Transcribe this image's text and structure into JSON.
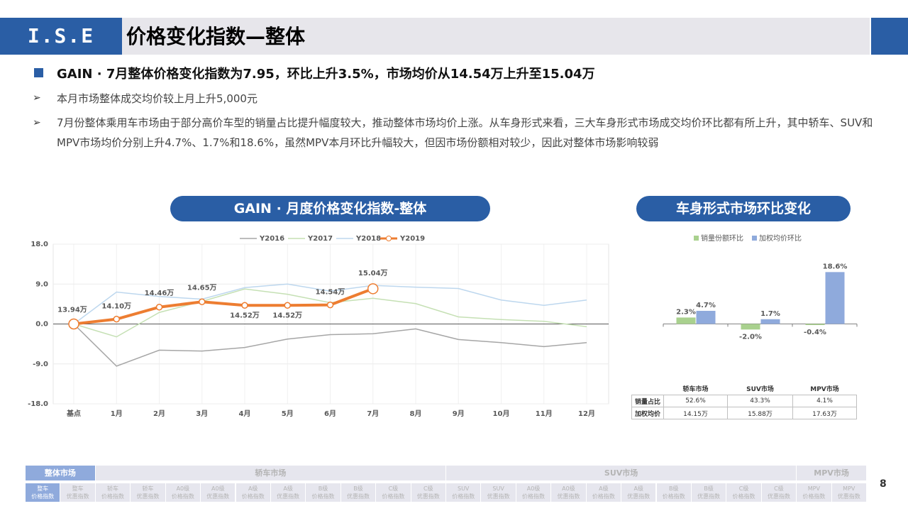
{
  "header": {
    "logo": "I.S.E",
    "title": "价格变化指数—整体"
  },
  "summary": "GAIN · 7月整体价格变化指数为7.95，环比上升3.5%，市场均价从14.54万上升至15.04万",
  "bullets": [
    "本月市场整体成交均价较上月上升5,000元",
    "7月份整体乘用车市场由于部分高价车型的销量占比提升幅度较大，推动整体市场均价上涨。从车身形式来看，三大车身形式市场成交均价环比都有所上升，其中轿车、SUV和MPV市场均价分别上升4.7%、1.7%和18.6%，虽然MPV本月环比升幅较大，但因市场份额相对较少，因此对整体市场影响较弱"
  ],
  "chart_data": [
    {
      "type": "line",
      "title": "GAIN · 月度价格变化指数-整体",
      "categories": [
        "基点",
        "1月",
        "2月",
        "3月",
        "4月",
        "5月",
        "6月",
        "7月",
        "8月",
        "9月",
        "10月",
        "11月",
        "12月"
      ],
      "series": [
        {
          "name": "Y2016",
          "color": "#a6a6a6",
          "values": [
            0,
            -9.5,
            -5.9,
            -6.1,
            -5.3,
            -3.4,
            -2.4,
            -2.2,
            -1.1,
            -3.5,
            -4.2,
            -5.1,
            -4.2
          ]
        },
        {
          "name": "Y2017",
          "color": "#c5e0b4",
          "values": [
            0,
            -2.9,
            2.6,
            5.1,
            7.9,
            6.7,
            4.8,
            5.8,
            4.6,
            1.6,
            1.0,
            0.6,
            -0.6
          ]
        },
        {
          "name": "Y2018",
          "color": "#bdd7ee",
          "values": [
            0,
            7.2,
            6.2,
            5.6,
            8.2,
            9.0,
            7.4,
            8.7,
            8.3,
            8.0,
            5.4,
            4.2,
            5.4
          ]
        },
        {
          "name": "Y2019",
          "color": "#ed7d31",
          "values": [
            0,
            1.1,
            3.8,
            5.0,
            4.2,
            4.2,
            4.3,
            7.95,
            null,
            null,
            null,
            null,
            null
          ]
        }
      ],
      "annotations": [
        "13.94万",
        "14.10万",
        "14.46万",
        "14.65万",
        "14.52万",
        "14.52万",
        "14.54万",
        "15.04万"
      ],
      "ylim": [
        -18,
        18
      ],
      "yticks": [
        {
          "value": -18,
          "label": "-18.0"
        },
        {
          "value": -9,
          "label": "-9.0"
        },
        {
          "value": 0,
          "label": "0.0"
        },
        {
          "value": 9,
          "label": "9.0"
        },
        {
          "value": 18,
          "label": "18.0"
        }
      ],
      "grid": true,
      "legend": "top"
    },
    {
      "type": "bar",
      "title": "车身形式市场环比变化",
      "categories": [
        "轿车市场",
        "SUV市场",
        "MPV市场"
      ],
      "series": [
        {
          "name": "销量份额环比",
          "color": "#a9d18e",
          "values": [
            2.3,
            -2.0,
            -0.4
          ],
          "value_labels": [
            "2.3%",
            "-2.0%",
            "-0.4%"
          ]
        },
        {
          "name": "加权均价环比",
          "color": "#8faadc",
          "values": [
            4.7,
            1.7,
            18.6
          ],
          "value_labels": [
            "4.7%",
            "1.7%",
            "18.6%"
          ]
        }
      ],
      "ylim": [
        -6,
        22
      ],
      "legend": "top"
    }
  ],
  "table": {
    "rows": [
      [
        "销量占比",
        "52.6%",
        "43.3%",
        "4.1%"
      ],
      [
        "加权均价",
        "14.15万",
        "15.88万",
        "17.63万"
      ]
    ]
  },
  "nav": {
    "top": [
      "整体市场",
      "轿车市场",
      "SUV市场",
      "MPV市场"
    ],
    "items": [
      [
        "整车",
        "价格指数"
      ],
      [
        "整车",
        "优惠指数"
      ],
      [
        "轿车",
        "价格指数"
      ],
      [
        "轿车",
        "优惠指数"
      ],
      [
        "A0级",
        "价格指数"
      ],
      [
        "A0级",
        "优惠指数"
      ],
      [
        "A级",
        "价格指数"
      ],
      [
        "A级",
        "优惠指数"
      ],
      [
        "B级",
        "价格指数"
      ],
      [
        "B级",
        "优惠指数"
      ],
      [
        "C级",
        "价格指数"
      ],
      [
        "C级",
        "优惠指数"
      ],
      [
        "SUV",
        "价格指数"
      ],
      [
        "SUV",
        "优惠指数"
      ],
      [
        "A0级",
        "价格指数"
      ],
      [
        "A0级",
        "优惠指数"
      ],
      [
        "A级",
        "价格指数"
      ],
      [
        "A级",
        "优惠指数"
      ],
      [
        "B级",
        "价格指数"
      ],
      [
        "B级",
        "优惠指数"
      ],
      [
        "C级",
        "价格指数"
      ],
      [
        "C级",
        "优惠指数"
      ],
      [
        "MPV",
        "价格指数"
      ],
      [
        "MPV",
        "优惠指数"
      ]
    ]
  },
  "page_number": "8"
}
